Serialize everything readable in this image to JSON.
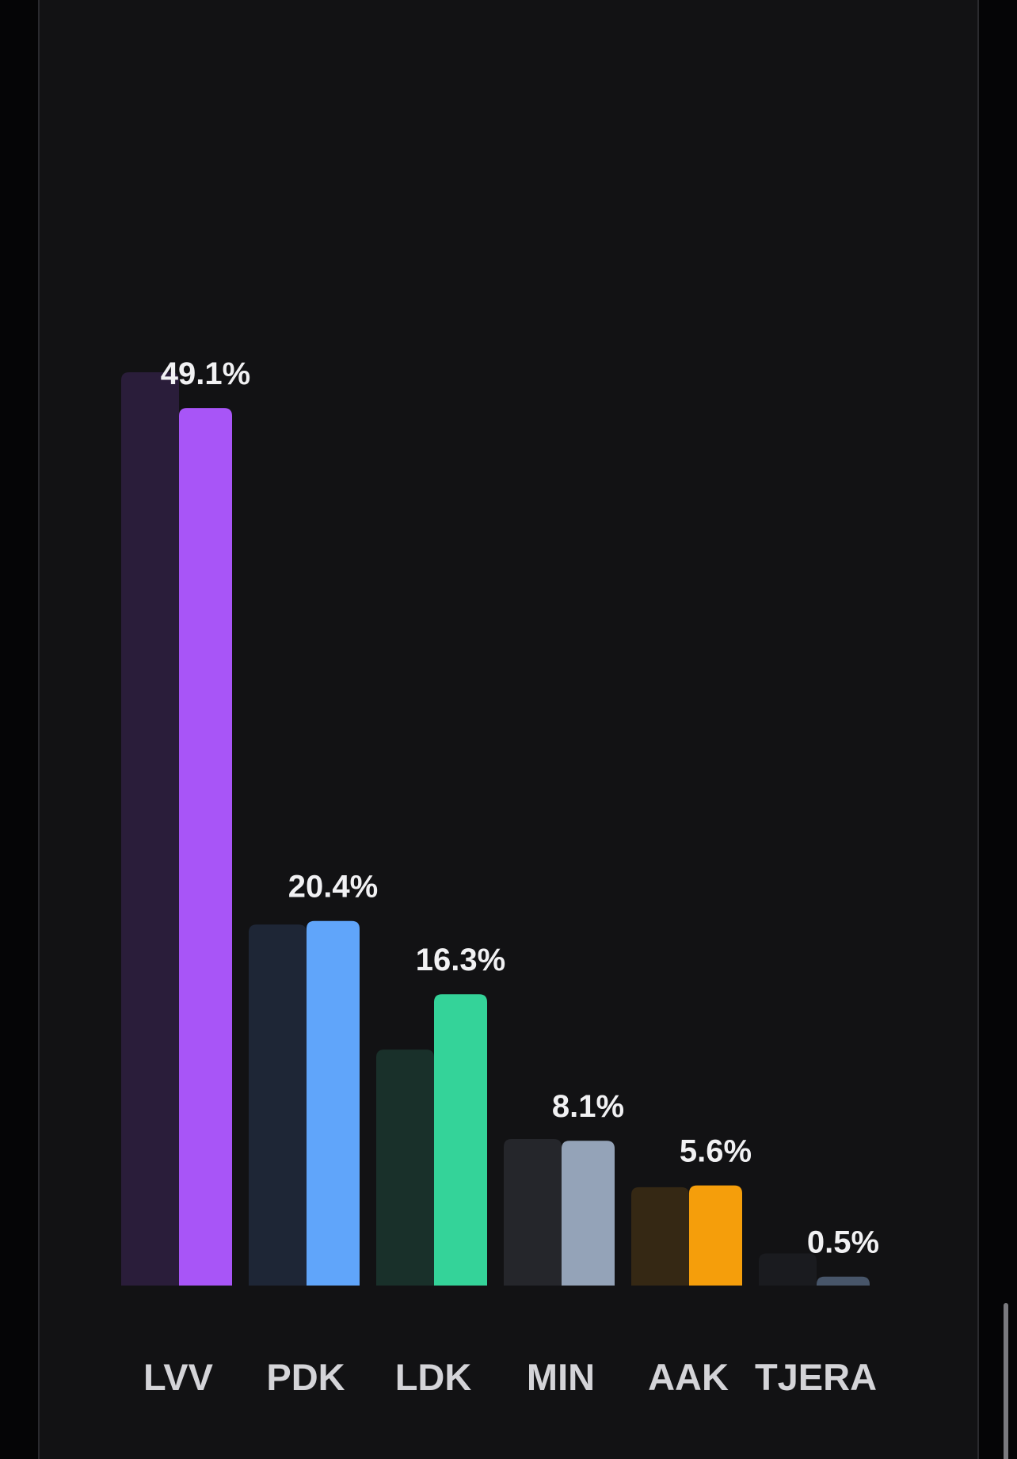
{
  "chart_data": {
    "type": "bar",
    "categories": [
      "LVV",
      "PDK",
      "LDK",
      "MIN",
      "AAK",
      "TJERA"
    ],
    "series": [
      {
        "colors": [
          "#2a1d3a",
          "#1e2636",
          "#19302a",
          "#25262b",
          "#352814",
          "#1a1b1f"
        ],
        "values": [
          51.1,
          20.2,
          13.2,
          8.2,
          5.5,
          1.8
        ]
      },
      {
        "colors": [
          "#a855f7",
          "#60a5fa",
          "#34d399",
          "#94a3b8",
          "#f59e0b",
          "#475569"
        ],
        "values": [
          49.1,
          20.4,
          16.3,
          8.1,
          5.6,
          0.5
        ],
        "value_labels": [
          "49.1%",
          "20.4%",
          "16.3%",
          "8.1%",
          "5.6%",
          "0.5%"
        ]
      }
    ]
  }
}
